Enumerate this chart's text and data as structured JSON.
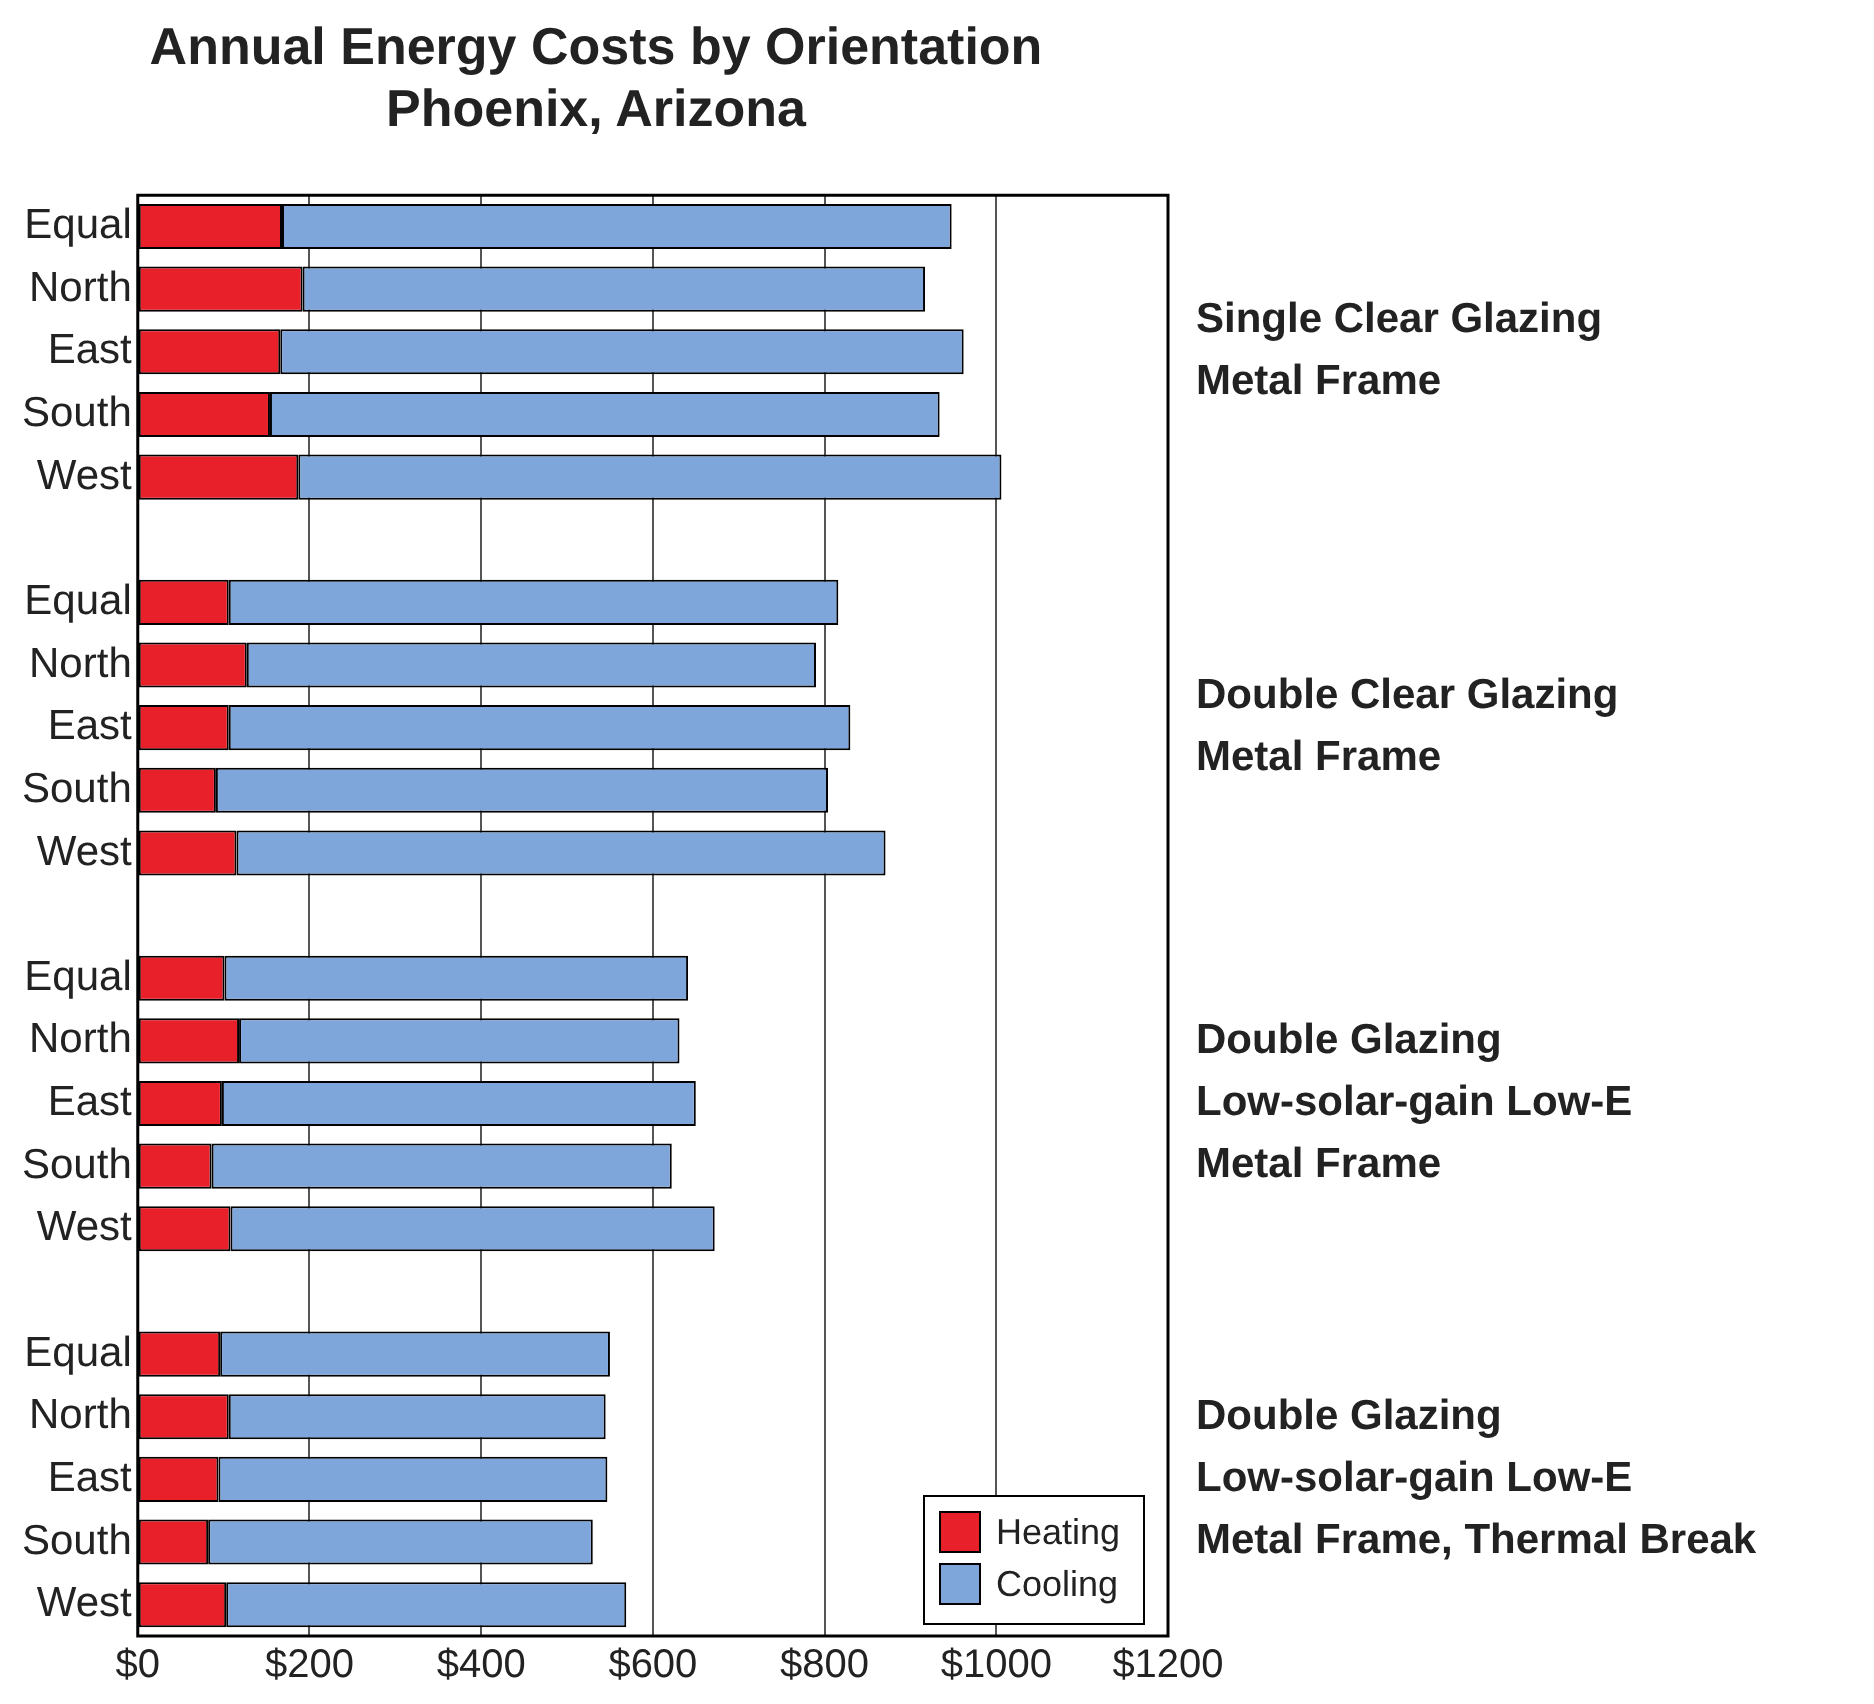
{
  "chart_data": {
    "type": "bar",
    "orientation": "horizontal",
    "stacked": true,
    "title": "Annual Energy Costs by Orientation\nPhoenix, Arizona",
    "categories": [
      "Equal",
      "North",
      "East",
      "South",
      "West",
      null,
      "Equal",
      "North",
      "East",
      "South",
      "West",
      null,
      "Equal",
      "North",
      "East",
      "South",
      "West",
      null,
      "Equal",
      "North",
      "East",
      "South",
      "West"
    ],
    "series": [
      {
        "name": "Heating",
        "color": "#e8202a",
        "values": [
          168,
          192,
          166,
          154,
          187,
          null,
          106,
          127,
          106,
          91,
          115,
          null,
          101,
          118,
          98,
          86,
          108,
          null,
          96,
          106,
          94,
          82,
          103
        ]
      },
      {
        "name": "Cooling",
        "color": "#7fa6da",
        "values": [
          780,
          725,
          796,
          780,
          819,
          null,
          710,
          663,
          724,
          713,
          756,
          null,
          540,
          513,
          552,
          536,
          564,
          null,
          454,
          439,
          453,
          448,
          466
        ]
      }
    ],
    "xlim": [
      0,
      1200
    ],
    "xticks": [
      {
        "value": 0,
        "label": "$0"
      },
      {
        "value": 200,
        "label": "$200"
      },
      {
        "value": 400,
        "label": "$400"
      },
      {
        "value": 600,
        "label": "$600"
      },
      {
        "value": 800,
        "label": "$800"
      },
      {
        "value": 1000,
        "label": "$1000"
      },
      {
        "value": 1200,
        "label": "$1200"
      }
    ],
    "grid": "x",
    "legend": "bottom right",
    "annotations": [
      "Single Clear Glazing\nMetal Frame",
      "Double Clear Glazing\nMetal Frame",
      "Double Glazing\nLow-solar-gain Low-E\nMetal Frame",
      "Double Glazing\nLow-solar-gain Low-E\nMetal Frame, Thermal Break"
    ]
  }
}
